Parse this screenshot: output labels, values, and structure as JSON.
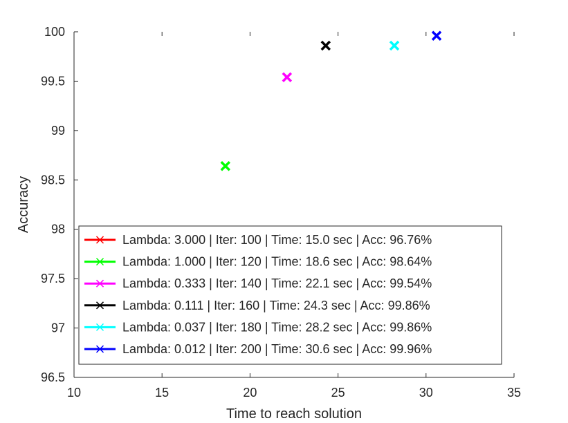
{
  "chart_data": {
    "type": "scatter",
    "xlabel": "Time to reach solution",
    "ylabel": "Accuracy",
    "xlim": [
      10,
      35
    ],
    "ylim": [
      96.5,
      100
    ],
    "xticks": [
      10,
      15,
      20,
      25,
      30,
      35
    ],
    "yticks": [
      96.5,
      97,
      97.5,
      98,
      98.5,
      99,
      99.5,
      100
    ],
    "grid": false,
    "legend_position": "bottom-left",
    "series": [
      {
        "name": "Lambda: 3.000 | Iter: 100 | Time: 15.0 sec | Acc: 96.76%",
        "color": "#ff0000",
        "x": 15.0,
        "y": 96.76
      },
      {
        "name": "Lambda: 1.000 | Iter: 120 | Time: 18.6 sec | Acc: 98.64%",
        "color": "#00ff00",
        "x": 18.6,
        "y": 98.64
      },
      {
        "name": "Lambda: 0.333 | Iter: 140 | Time: 22.1 sec | Acc: 99.54%",
        "color": "#ff00ff",
        "x": 22.1,
        "y": 99.54
      },
      {
        "name": "Lambda: 0.111 | Iter: 160 | Time: 24.3 sec | Acc: 99.86%",
        "color": "#000000",
        "x": 24.3,
        "y": 99.86
      },
      {
        "name": "Lambda: 0.037 | Iter: 180 | Time: 28.2 sec | Acc: 99.86%",
        "color": "#00ffff",
        "x": 28.2,
        "y": 99.86
      },
      {
        "name": "Lambda: 0.012 | Iter: 200 | Time: 30.6 sec | Acc: 99.96%",
        "color": "#0000ff",
        "x": 30.6,
        "y": 99.96
      }
    ]
  }
}
